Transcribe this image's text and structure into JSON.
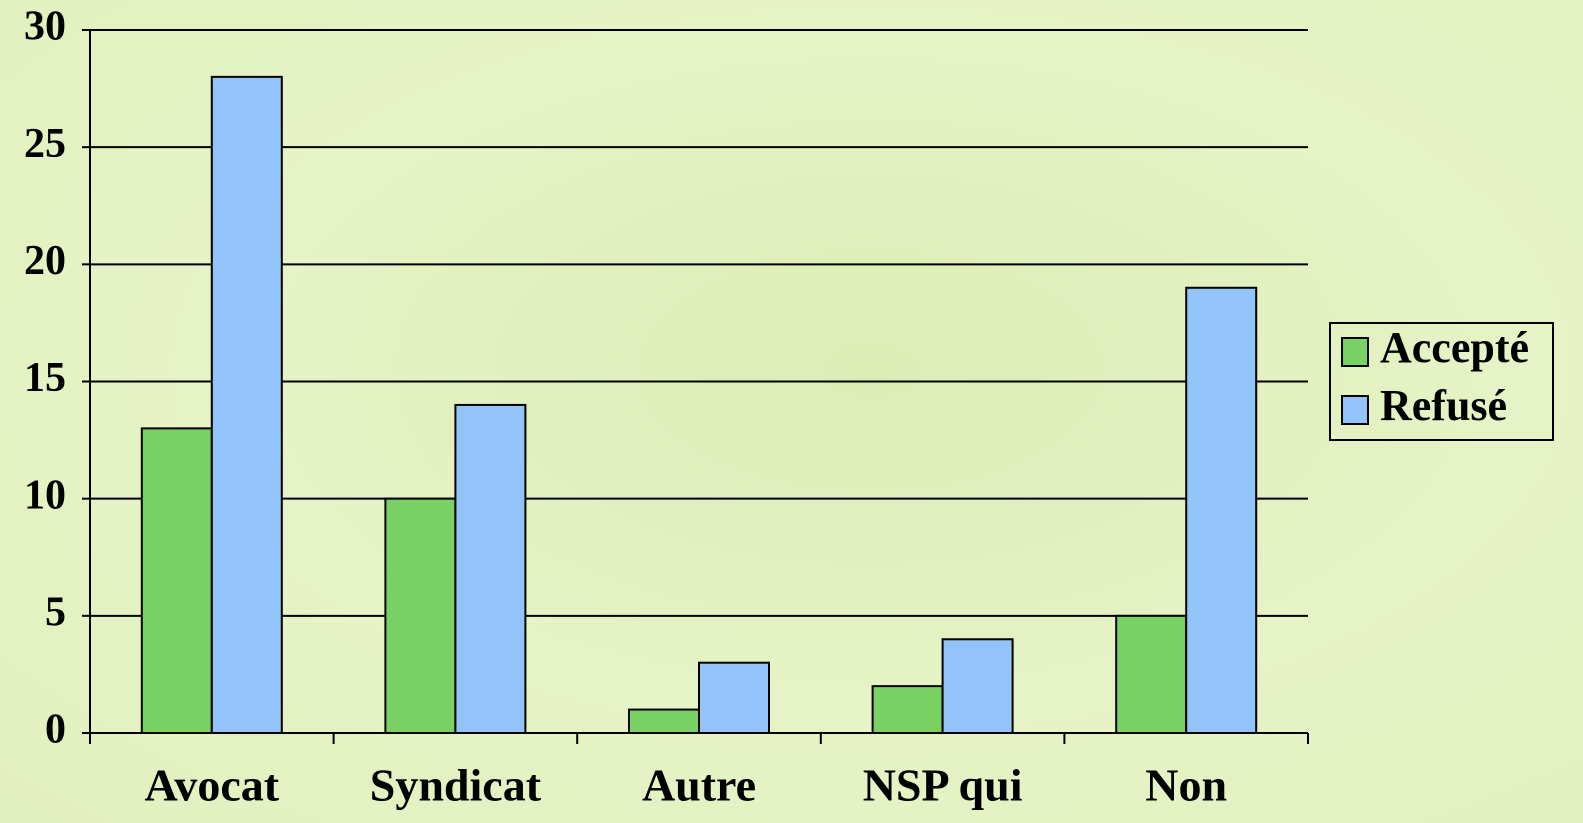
{
  "chart_data": {
    "type": "bar",
    "categories": [
      "Avocat",
      "Syndicat",
      "Autre",
      "NSP qui",
      "Non"
    ],
    "series": [
      {
        "name": "Accepté",
        "color": "#7ad163",
        "values": [
          13,
          10,
          1,
          2,
          5
        ]
      },
      {
        "name": "Refusé",
        "color": "#92c4fa",
        "values": [
          28,
          14,
          3,
          4,
          19
        ]
      }
    ],
    "ylim": [
      0,
      30
    ],
    "yticks": [
      0,
      5,
      10,
      15,
      20,
      25,
      30
    ],
    "grid": true,
    "legend": "right"
  }
}
